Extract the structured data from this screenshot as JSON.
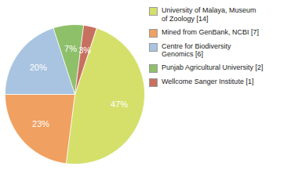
{
  "chart_data": {
    "type": "pie",
    "categories": [
      "University of Malaya, Museum\nof Zoology [14]",
      "Mined from GenBank, NCBI [7]",
      "Centre for Biodiversity\nGenomics [6]",
      "Punjab Agricultural University [2]",
      "Wellcome Sanger Institute [1]"
    ],
    "values": [
      47,
      23,
      20,
      7,
      3
    ],
    "value_labels": [
      "47%",
      "23%",
      "20%",
      "7%",
      "3%"
    ],
    "colors": [
      "#d4e06a",
      "#f0a060",
      "#a8c4e0",
      "#8ec06a",
      "#c87060"
    ],
    "data_labels": true,
    "legend": "right"
  }
}
